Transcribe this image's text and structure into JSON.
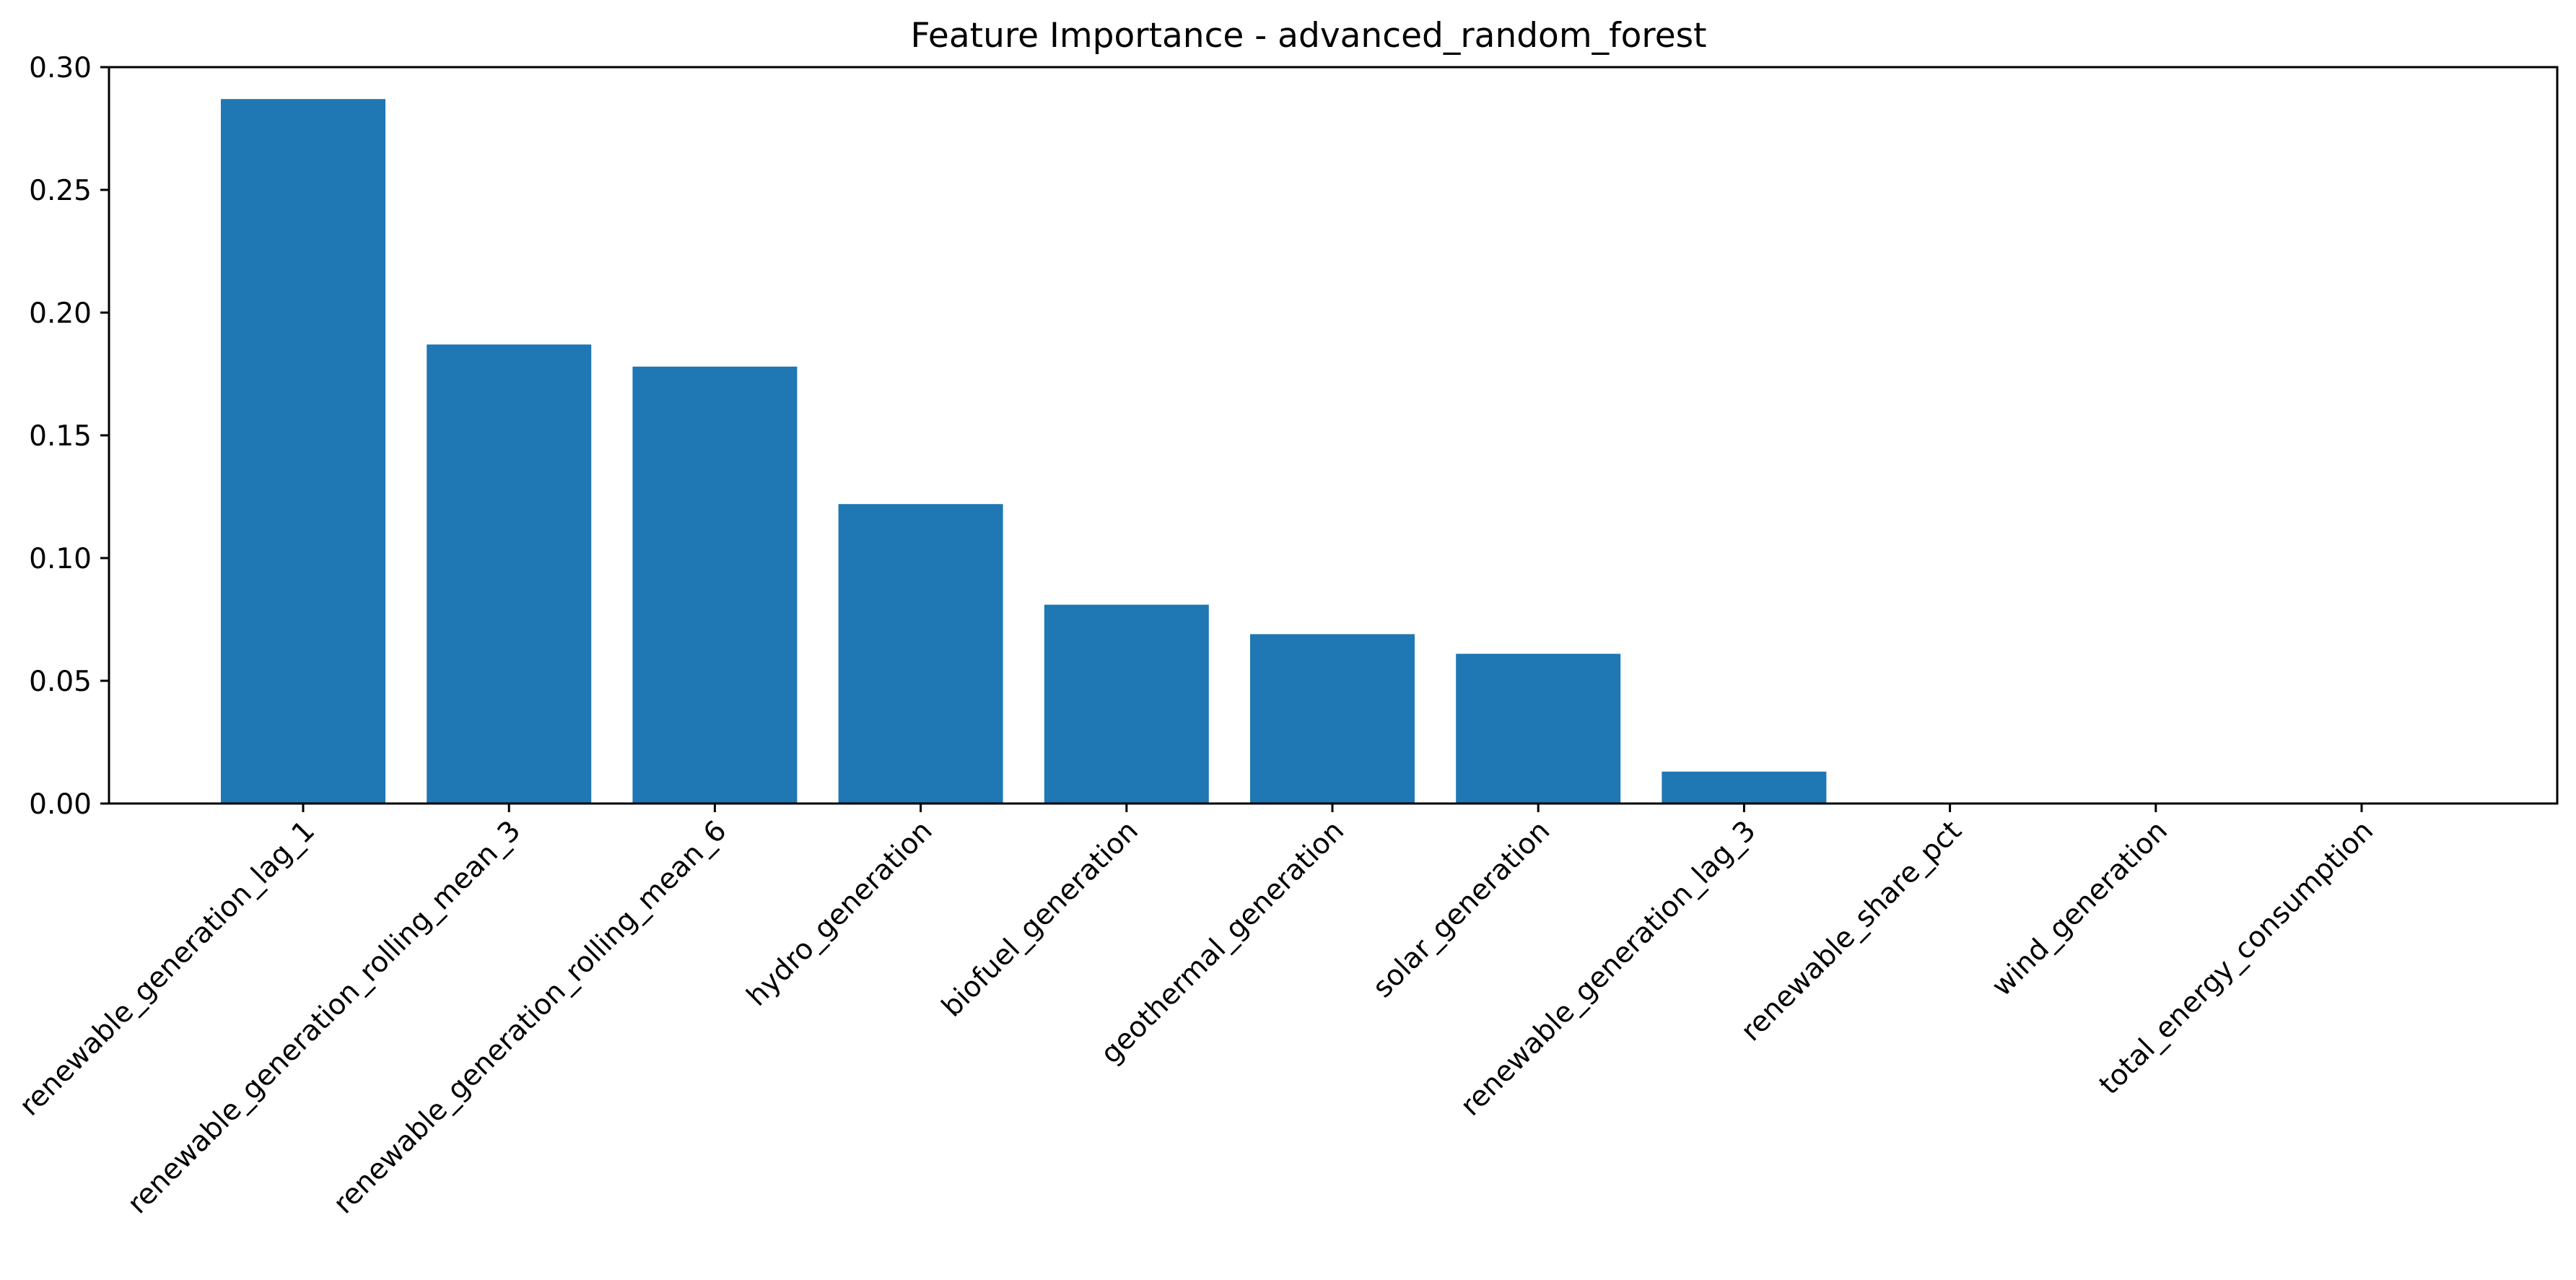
{
  "chart_data": {
    "type": "bar",
    "title": "Feature Importance - advanced_random_forest",
    "xlabel": "",
    "ylabel": "",
    "categories": [
      "renewable_generation_lag_1",
      "renewable_generation_rolling_mean_3",
      "renewable_generation_rolling_mean_6",
      "hydro_generation",
      "biofuel_generation",
      "geothermal_generation",
      "solar_generation",
      "renewable_generation_lag_3",
      "renewable_share_pct",
      "wind_generation",
      "total_energy_consumption"
    ],
    "values": [
      0.287,
      0.187,
      0.178,
      0.122,
      0.081,
      0.069,
      0.061,
      0.013,
      0.0,
      0.0,
      0.0
    ],
    "ylim": [
      0,
      0.3
    ],
    "yticks": [
      "0.00",
      "0.05",
      "0.10",
      "0.15",
      "0.20",
      "0.25",
      "0.30"
    ],
    "grid": false,
    "bar_color": "#1f77b4"
  }
}
